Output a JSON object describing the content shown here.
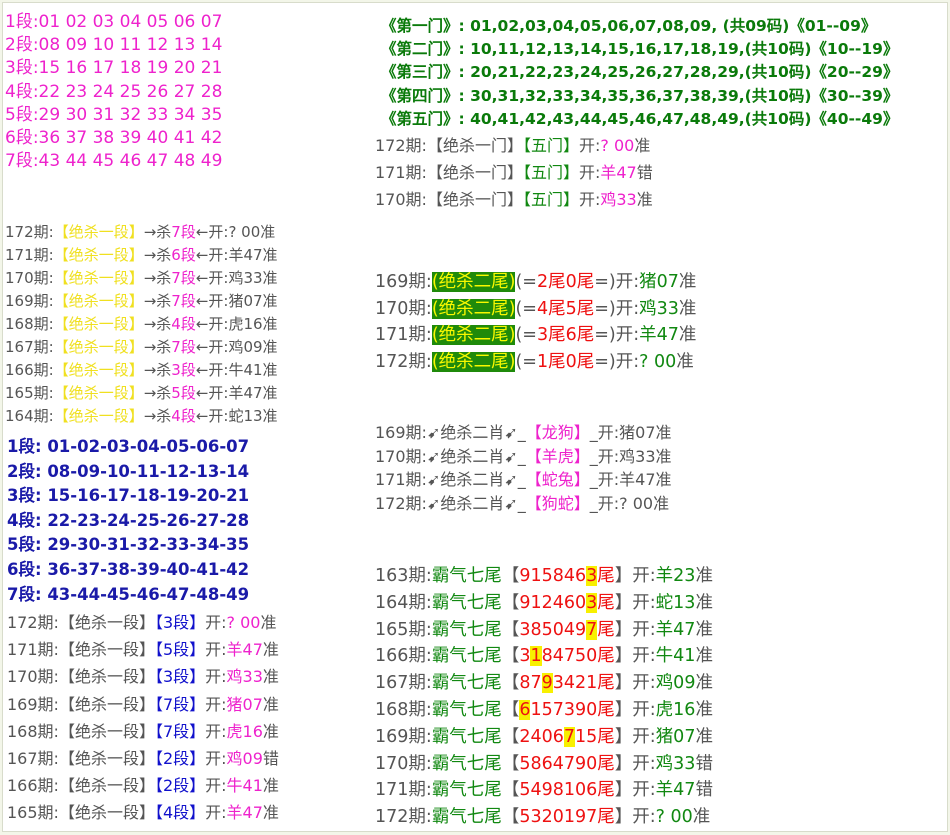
{
  "segments": [
    "1段:01 02 03 04 05 06 07",
    "2段:08 09 10 11 12 13 14",
    "3段:15 16 17 18 19 20 21",
    "4段:22 23 24 25 26 27 28",
    "5段:29 30 31 32 33 34 35",
    "6段:36 37 38 39 40 41 42",
    "7段:43 44 45 46 47 48 49"
  ],
  "doors": [
    "《第一门》: 01,02,03,04,05,06,07,08,09,  (共09码)《01--09》",
    "《第二门》: 10,11,12,13,14,15,16,17,18,19,(共10码)《10--19》",
    "《第三门》: 20,21,22,23,24,25,26,27,28,29,(共10码)《20--29》",
    "《第四门》: 30,31,32,33,34,35,36,37,38,39,(共10码)《30--39》",
    "《第五门》: 40,41,42,43,44,45,46,47,48,49,(共10码)《40--49》"
  ],
  "kill_door": [
    {
      "period": "172期:",
      "label": "【绝杀一门】",
      "pick": "【五门】",
      "open": "开:",
      "result": "? 00",
      "verdict": "准"
    },
    {
      "period": "171期:",
      "label": "【绝杀一门】",
      "pick": "【五门】",
      "open": "开:",
      "result": "羊47",
      "verdict": "错"
    },
    {
      "period": "170期:",
      "label": "【绝杀一门】",
      "pick": "【五门】",
      "open": "开:",
      "result": "鸡33",
      "verdict": "准"
    }
  ],
  "kill_segment_arrow": [
    {
      "period": "172期:",
      "label": "【绝杀一段】",
      "arrow": "→杀",
      "seg": "7段",
      "tail": "←开:? 00准"
    },
    {
      "period": "171期:",
      "label": "【绝杀一段】",
      "arrow": "→杀",
      "seg": "6段",
      "tail": "←开:羊47准"
    },
    {
      "period": "170期:",
      "label": "【绝杀一段】",
      "arrow": "→杀",
      "seg": "7段",
      "tail": "←开:鸡33准"
    },
    {
      "period": "169期:",
      "label": "【绝杀一段】",
      "arrow": "→杀",
      "seg": "7段",
      "tail": "←开:猪07准"
    },
    {
      "period": "168期:",
      "label": "【绝杀一段】",
      "arrow": "→杀",
      "seg": "4段",
      "tail": "←开:虎16准"
    },
    {
      "period": "167期:",
      "label": "【绝杀一段】",
      "arrow": "→杀",
      "seg": "7段",
      "tail": "←开:鸡09准"
    },
    {
      "period": "166期:",
      "label": "【绝杀一段】",
      "arrow": "→杀",
      "seg": "3段",
      "tail": "←开:牛41准"
    },
    {
      "period": "165期:",
      "label": "【绝杀一段】",
      "arrow": "→杀",
      "seg": "5段",
      "tail": "←开:羊47准"
    },
    {
      "period": "164期:",
      "label": "【绝杀一段】",
      "arrow": "→杀",
      "seg": "4段",
      "tail": "←开:蛇13准"
    }
  ],
  "segments_bold": [
    "1段: 01-02-03-04-05-06-07",
    "2段: 08-09-10-11-12-13-14",
    "3段: 15-16-17-18-19-20-21",
    "4段: 22-23-24-25-26-27-28",
    "5段: 29-30-31-32-33-34-35",
    "6段: 36-37-38-39-40-41-42",
    "7段: 43-44-45-46-47-48-49"
  ],
  "kill_segment": [
    {
      "period": "172期:",
      "label": "【绝杀一段】",
      "pick": "【3段】",
      "open": "开:",
      "result": "? 00",
      "verdict": "准"
    },
    {
      "period": "171期:",
      "label": "【绝杀一段】",
      "pick": "【5段】",
      "open": "开:",
      "result": "羊47",
      "verdict": "准"
    },
    {
      "period": "170期:",
      "label": "【绝杀一段】",
      "pick": "【3段】",
      "open": "开:",
      "result": "鸡33",
      "verdict": "准"
    },
    {
      "period": "169期:",
      "label": "【绝杀一段】",
      "pick": "【7段】",
      "open": "开:",
      "result": "猪07",
      "verdict": "准"
    },
    {
      "period": "168期:",
      "label": "【绝杀一段】",
      "pick": "【7段】",
      "open": "开:",
      "result": "虎16",
      "verdict": "准"
    },
    {
      "period": "167期:",
      "label": "【绝杀一段】",
      "pick": "【2段】",
      "open": "开:",
      "result": "鸡09",
      "verdict": "错"
    },
    {
      "period": "166期:",
      "label": "【绝杀一段】",
      "pick": "【2段】",
      "open": "开:",
      "result": "牛41",
      "verdict": "准"
    },
    {
      "period": "165期:",
      "label": "【绝杀一段】",
      "pick": "【4段】",
      "open": "开:",
      "result": "羊47",
      "verdict": "准"
    }
  ],
  "kill_tail": [
    {
      "period": "169期:",
      "label": "(绝杀二尾)",
      "pre": "(=",
      "pick": "2尾0尾",
      "post": "=)开:",
      "result": "猪07",
      "verdict": "准"
    },
    {
      "period": "170期:",
      "label": "(绝杀二尾)",
      "pre": "(=",
      "pick": "4尾5尾",
      "post": "=)开:",
      "result": "鸡33",
      "verdict": "准"
    },
    {
      "period": "171期:",
      "label": "(绝杀二尾)",
      "pre": "(=",
      "pick": "3尾6尾",
      "post": "=)开:",
      "result": "羊47",
      "verdict": "准"
    },
    {
      "period": "172期:",
      "label": "(绝杀二尾)",
      "pre": "(=",
      "pick": "1尾0尾",
      "post": "=)开:",
      "result": "? 00",
      "verdict": "准"
    }
  ],
  "kill_zodiac": [
    {
      "period": "169期:",
      "label": "➹绝杀二肖➹_",
      "pick": "【龙狗】",
      "tail": "_开:猪07准"
    },
    {
      "period": "170期:",
      "label": "➹绝杀二肖➹_",
      "pick": "【羊虎】",
      "tail": "_开:鸡33准"
    },
    {
      "period": "171期:",
      "label": "➹绝杀二肖➹_",
      "pick": "【蛇兔】",
      "tail": "_开:羊47准"
    },
    {
      "period": "172期:",
      "label": "➹绝杀二肖➹_",
      "pick": "【狗蛇】",
      "tail": "_开:? 00准"
    }
  ],
  "seven_tails": [
    {
      "period": "163期:",
      "label": "霸气七尾",
      "open_br": "【",
      "pre": "915846",
      "hit": "3",
      "post": "尾",
      "close_br": "】",
      "open": "开:",
      "result": "羊23",
      "verdict": "准"
    },
    {
      "period": "164期:",
      "label": "霸气七尾",
      "open_br": "【",
      "pre": "912460",
      "hit": "3",
      "post": "尾",
      "close_br": "】",
      "open": "开:",
      "result": "蛇13",
      "verdict": "准"
    },
    {
      "period": "165期:",
      "label": "霸气七尾",
      "open_br": "【",
      "pre": "385049",
      "hit": "7",
      "post": "尾",
      "close_br": "】",
      "open": "开:",
      "result": "羊47",
      "verdict": "准"
    },
    {
      "period": "166期:",
      "label": "霸气七尾",
      "open_br": "【",
      "pre": "3",
      "hit": "1",
      "post": "84750尾",
      "close_br": "】",
      "open": "开:",
      "result": "牛41",
      "verdict": "准"
    },
    {
      "period": "167期:",
      "label": "霸气七尾",
      "open_br": "【",
      "pre": "87",
      "hit": "9",
      "post": "3421尾",
      "close_br": "】",
      "open": "开:",
      "result": "鸡09",
      "verdict": "准"
    },
    {
      "period": "168期:",
      "label": "霸气七尾",
      "open_br": "【",
      "pre": "",
      "hit": "6",
      "post": "157390尾",
      "close_br": "】",
      "open": "开:",
      "result": "虎16",
      "verdict": "准"
    },
    {
      "period": "169期:",
      "label": "霸气七尾",
      "open_br": "【",
      "pre": "2406",
      "hit": "7",
      "post": "15尾",
      "close_br": "】",
      "open": "开:",
      "result": "猪07",
      "verdict": "准"
    },
    {
      "period": "170期:",
      "label": "霸气七尾",
      "open_br": "【",
      "pre": "5864790尾",
      "hit": "",
      "post": "",
      "close_br": "】",
      "open": "开:",
      "result": "鸡33",
      "verdict": "错"
    },
    {
      "period": "171期:",
      "label": "霸气七尾",
      "open_br": "【",
      "pre": "5498106尾",
      "hit": "",
      "post": "",
      "close_br": "】",
      "open": "开:",
      "result": "羊47",
      "verdict": "错"
    },
    {
      "period": "172期:",
      "label": "霸气七尾",
      "open_br": "【",
      "pre": "5320197尾",
      "hit": "",
      "post": "",
      "close_br": "】",
      "open": "开:",
      "result": "? 00",
      "verdict": "准"
    }
  ]
}
